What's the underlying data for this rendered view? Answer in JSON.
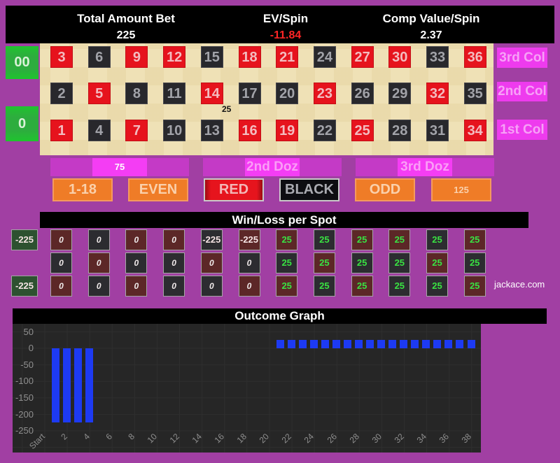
{
  "header": {
    "stats": [
      {
        "label": "Total Amount Bet",
        "value": "225",
        "value_color": "#ffffff"
      },
      {
        "label": "EV/Spin",
        "value": "-11.84",
        "value_color": "#ff2525"
      },
      {
        "label": "Comp Value/Spin",
        "value": "2.37",
        "value_color": "#ffffff"
      }
    ]
  },
  "table": {
    "zeros": [
      {
        "label": "00"
      },
      {
        "label": "0"
      }
    ],
    "column_buttons": [
      {
        "label": "3rd Col"
      },
      {
        "label": "2nd Col"
      },
      {
        "label": "1st Col"
      }
    ],
    "grid": [
      [
        {
          "n": "3",
          "c": "r"
        },
        {
          "n": "6",
          "c": "b"
        },
        {
          "n": "9",
          "c": "r"
        },
        {
          "n": "12",
          "c": "r"
        },
        {
          "n": "15",
          "c": "b"
        },
        {
          "n": "18",
          "c": "r"
        },
        {
          "n": "21",
          "c": "r"
        },
        {
          "n": "24",
          "c": "b"
        },
        {
          "n": "27",
          "c": "r"
        },
        {
          "n": "30",
          "c": "r"
        },
        {
          "n": "33",
          "c": "b"
        },
        {
          "n": "36",
          "c": "r"
        }
      ],
      [
        {
          "n": "2",
          "c": "b"
        },
        {
          "n": "5",
          "c": "r"
        },
        {
          "n": "8",
          "c": "b"
        },
        {
          "n": "11",
          "c": "b"
        },
        {
          "n": "14",
          "c": "r"
        },
        {
          "n": "17",
          "c": "b"
        },
        {
          "n": "20",
          "c": "b"
        },
        {
          "n": "23",
          "c": "r"
        },
        {
          "n": "26",
          "c": "b"
        },
        {
          "n": "29",
          "c": "b"
        },
        {
          "n": "32",
          "c": "r"
        },
        {
          "n": "35",
          "c": "b"
        }
      ],
      [
        {
          "n": "1",
          "c": "r"
        },
        {
          "n": "4",
          "c": "b"
        },
        {
          "n": "7",
          "c": "r"
        },
        {
          "n": "10",
          "c": "b"
        },
        {
          "n": "13",
          "c": "b"
        },
        {
          "n": "16",
          "c": "r"
        },
        {
          "n": "19",
          "c": "r"
        },
        {
          "n": "22",
          "c": "b"
        },
        {
          "n": "25",
          "c": "r"
        },
        {
          "n": "28",
          "c": "b"
        },
        {
          "n": "31",
          "c": "b"
        },
        {
          "n": "34",
          "c": "r"
        }
      ]
    ],
    "corner_chip": {
      "value": "25"
    },
    "dozens": [
      {
        "chip": "75"
      },
      {
        "label": "2nd Doz"
      },
      {
        "label": "3rd Doz"
      }
    ],
    "outside_bets": [
      {
        "label": "1-18",
        "style": "orange"
      },
      {
        "label": "EVEN",
        "style": "orange"
      },
      {
        "label": "RED",
        "style": "red"
      },
      {
        "label": "BLACK",
        "style": "black"
      },
      {
        "label": "ODD",
        "style": "orange"
      },
      {
        "label": "125",
        "style": "orange",
        "chip": true
      }
    ]
  },
  "winloss": {
    "title": "Win/Loss per Spot",
    "zero_values": [
      "-225",
      "-225"
    ],
    "grid": [
      [
        {
          "v": "0",
          "c": "r"
        },
        {
          "v": "0",
          "c": "b"
        },
        {
          "v": "0",
          "c": "r"
        },
        {
          "v": "0",
          "c": "r"
        },
        {
          "v": "-225",
          "c": "b"
        },
        {
          "v": "-225",
          "c": "r"
        },
        {
          "v": "25",
          "c": "r"
        },
        {
          "v": "25",
          "c": "b"
        },
        {
          "v": "25",
          "c": "r"
        },
        {
          "v": "25",
          "c": "r"
        },
        {
          "v": "25",
          "c": "b"
        },
        {
          "v": "25",
          "c": "r"
        }
      ],
      [
        {
          "v": "0",
          "c": "b"
        },
        {
          "v": "0",
          "c": "r"
        },
        {
          "v": "0",
          "c": "b"
        },
        {
          "v": "0",
          "c": "b"
        },
        {
          "v": "0",
          "c": "r"
        },
        {
          "v": "0",
          "c": "b"
        },
        {
          "v": "25",
          "c": "b"
        },
        {
          "v": "25",
          "c": "r"
        },
        {
          "v": "25",
          "c": "b"
        },
        {
          "v": "25",
          "c": "b"
        },
        {
          "v": "25",
          "c": "r"
        },
        {
          "v": "25",
          "c": "b"
        }
      ],
      [
        {
          "v": "0",
          "c": "r"
        },
        {
          "v": "0",
          "c": "b"
        },
        {
          "v": "0",
          "c": "r"
        },
        {
          "v": "0",
          "c": "b"
        },
        {
          "v": "0",
          "c": "b"
        },
        {
          "v": "0",
          "c": "r"
        },
        {
          "v": "25",
          "c": "r"
        },
        {
          "v": "25",
          "c": "b"
        },
        {
          "v": "25",
          "c": "r"
        },
        {
          "v": "25",
          "c": "b"
        },
        {
          "v": "25",
          "c": "b"
        },
        {
          "v": "25",
          "c": "r"
        }
      ]
    ],
    "watermark": "jackace.com"
  },
  "chart_data": {
    "type": "bar",
    "title": "Outcome Graph",
    "x_tick_labels": [
      "Start",
      "2",
      "4",
      "6",
      "8",
      "10",
      "12",
      "14",
      "16",
      "18",
      "20",
      "22",
      "24",
      "26",
      "28",
      "30",
      "32",
      "34",
      "36",
      "38"
    ],
    "values": [
      0,
      -225,
      -225,
      -225,
      -225,
      0,
      0,
      0,
      0,
      0,
      0,
      0,
      0,
      0,
      0,
      0,
      0,
      0,
      0,
      0,
      0,
      25,
      25,
      25,
      25,
      25,
      25,
      25,
      25,
      25,
      25,
      25,
      25,
      25,
      25,
      25,
      25,
      25,
      25
    ],
    "y_ticks": [
      50,
      0,
      -50,
      -100,
      -150,
      -200,
      -250
    ],
    "ylim": [
      -260,
      65
    ],
    "bar_color": "#1d3af3",
    "plot_bg": "#262626",
    "grid": true,
    "legend": "none"
  },
  "colors": {
    "page_bg": "#a13fa3",
    "negative_text": "#ff2525",
    "positive_text": "#39e242",
    "magenta_button": "#ee3bee",
    "dozen_button": "#c43ac6",
    "orange_button": "#ef7c27",
    "bar_blue": "#1d3af3"
  }
}
